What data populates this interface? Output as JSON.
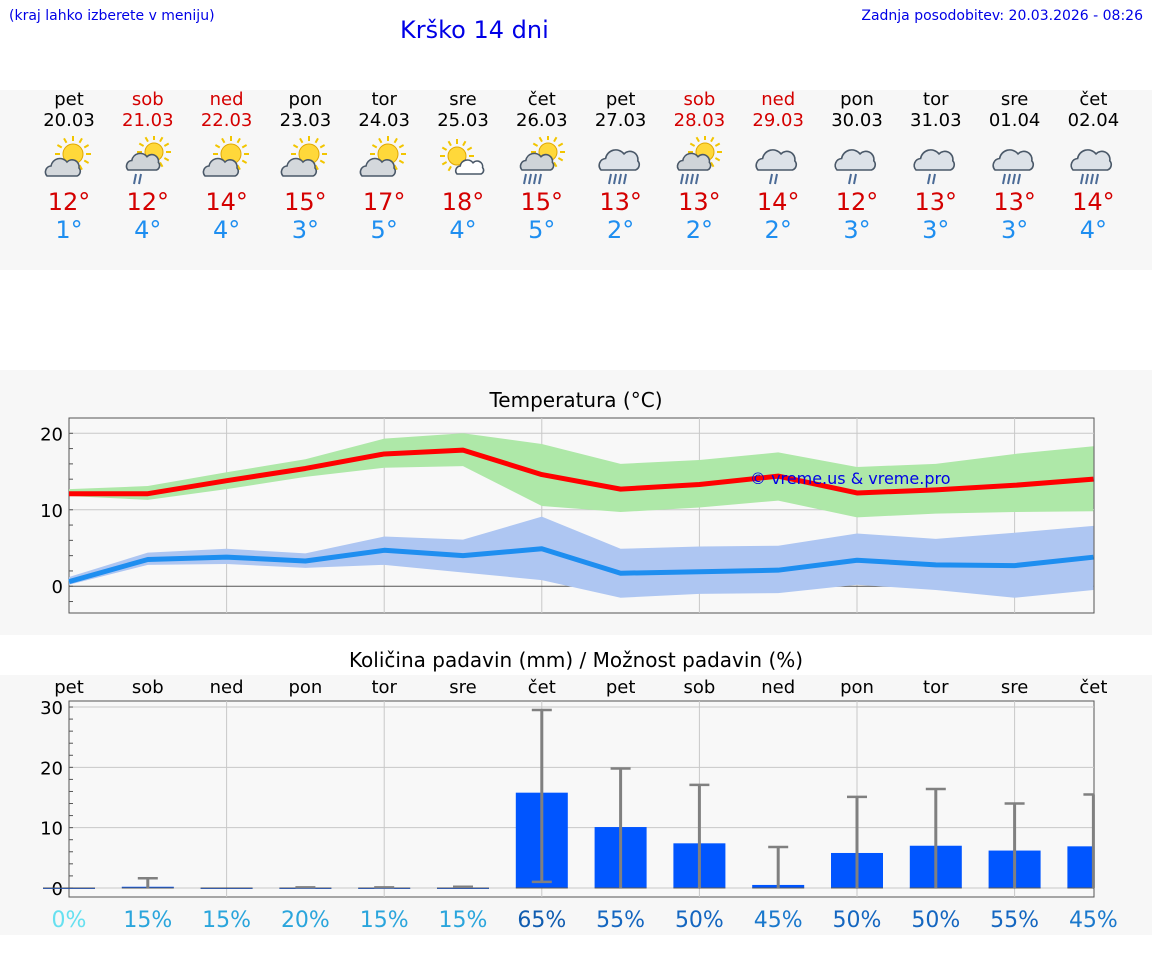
{
  "header": {
    "menu_hint": "(kraj lahko izberete v meniju)",
    "title": "Krško 14 dni",
    "updated": "Zadnja posodobitev: 20.03.2026 - 08:26"
  },
  "days": [
    {
      "name": "pet",
      "date": "20.03",
      "weekend": false,
      "icon": "partly-cloudy-sun-icon",
      "tmax": "12°",
      "tmin": "1°"
    },
    {
      "name": "sob",
      "date": "21.03",
      "weekend": true,
      "icon": "sun-cloud-light-rain-icon",
      "tmax": "12°",
      "tmin": "4°"
    },
    {
      "name": "ned",
      "date": "22.03",
      "weekend": true,
      "icon": "partly-cloudy-sun-icon",
      "tmax": "14°",
      "tmin": "4°"
    },
    {
      "name": "pon",
      "date": "23.03",
      "weekend": false,
      "icon": "partly-cloudy-sun-icon",
      "tmax": "15°",
      "tmin": "3°"
    },
    {
      "name": "tor",
      "date": "24.03",
      "weekend": false,
      "icon": "partly-cloudy-sun-icon",
      "tmax": "17°",
      "tmin": "5°"
    },
    {
      "name": "sre",
      "date": "25.03",
      "weekend": false,
      "icon": "mostly-sunny-icon",
      "tmax": "18°",
      "tmin": "4°"
    },
    {
      "name": "čet",
      "date": "26.03",
      "weekend": false,
      "icon": "sun-cloud-rain-icon",
      "tmax": "15°",
      "tmin": "5°"
    },
    {
      "name": "pet",
      "date": "27.03",
      "weekend": false,
      "icon": "cloud-rain-icon",
      "tmax": "13°",
      "tmin": "2°"
    },
    {
      "name": "sob",
      "date": "28.03",
      "weekend": true,
      "icon": "sun-cloud-rain-icon",
      "tmax": "13°",
      "tmin": "2°"
    },
    {
      "name": "ned",
      "date": "29.03",
      "weekend": true,
      "icon": "cloud-light-rain-icon",
      "tmax": "14°",
      "tmin": "2°"
    },
    {
      "name": "pon",
      "date": "30.03",
      "weekend": false,
      "icon": "cloud-light-rain-icon",
      "tmax": "12°",
      "tmin": "3°"
    },
    {
      "name": "tor",
      "date": "31.03",
      "weekend": false,
      "icon": "cloud-light-rain-icon",
      "tmax": "13°",
      "tmin": "3°"
    },
    {
      "name": "sre",
      "date": "01.04",
      "weekend": false,
      "icon": "cloud-rain-icon",
      "tmax": "13°",
      "tmin": "3°"
    },
    {
      "name": "čet",
      "date": "02.04",
      "weekend": false,
      "icon": "cloud-rain-icon",
      "tmax": "14°",
      "tmin": "4°"
    }
  ],
  "colors": {
    "max_line": "#ff0000",
    "max_band": "#aee8a8",
    "min_line": "#1e8ef0",
    "min_band": "#aec6f2",
    "bar": "#0055ff",
    "error": "#808080"
  },
  "chart_data": [
    {
      "type": "line",
      "title": "Temperatura (°C)",
      "watermark": "© vreme.us & vreme.pro",
      "ylim": [
        -3.5,
        22
      ],
      "yticks": [
        0,
        10,
        20
      ],
      "x": [
        0,
        1,
        2,
        3,
        4,
        5,
        6,
        7,
        8,
        9,
        10,
        11,
        12,
        13
      ],
      "series": [
        {
          "name": "max",
          "values": [
            12.1,
            12.1,
            13.8,
            15.4,
            17.3,
            17.8,
            14.6,
            12.7,
            13.3,
            14.4,
            12.2,
            12.6,
            13.2,
            14.0
          ],
          "band_low": [
            11.8,
            11.3,
            12.7,
            14.3,
            15.5,
            15.7,
            10.5,
            9.7,
            10.3,
            11.2,
            9.0,
            9.5,
            9.7,
            9.8
          ],
          "band_high": [
            12.7,
            13.1,
            14.9,
            16.6,
            19.3,
            20.0,
            18.6,
            16.0,
            16.5,
            17.5,
            15.6,
            16.0,
            17.3,
            18.3
          ]
        },
        {
          "name": "min",
          "values": [
            0.6,
            3.5,
            3.8,
            3.3,
            4.7,
            4.0,
            4.9,
            1.7,
            1.9,
            2.1,
            3.4,
            2.8,
            2.7,
            3.8
          ],
          "band_low": [
            0.2,
            2.8,
            2.9,
            2.4,
            2.8,
            1.8,
            0.8,
            -1.5,
            -1.0,
            -0.9,
            0.2,
            -0.5,
            -1.5,
            -0.5
          ],
          "band_high": [
            1.2,
            4.4,
            4.9,
            4.3,
            6.5,
            6.1,
            9.1,
            4.9,
            5.2,
            5.3,
            6.9,
            6.2,
            7.0,
            7.9
          ]
        }
      ]
    },
    {
      "type": "bar",
      "title": "Količina padavin (mm) / Možnost padavin (%)",
      "ylim": [
        -1.5,
        31
      ],
      "yticks": [
        0,
        10,
        20,
        30
      ],
      "categories": [
        "pet",
        "sob",
        "ned",
        "pon",
        "tor",
        "sre",
        "čet",
        "pet",
        "sob",
        "ned",
        "pon",
        "tor",
        "sre",
        "čet"
      ],
      "values": [
        0,
        0.2,
        0,
        0,
        0,
        0,
        15.8,
        10.1,
        7.4,
        0.5,
        5.8,
        7.0,
        6.2,
        6.9
      ],
      "error_low": [
        0,
        0,
        0,
        0,
        0,
        0,
        1.0,
        0,
        0,
        0,
        0,
        0,
        0,
        0
      ],
      "error_high": [
        0,
        1.6,
        0,
        0.1,
        0.1,
        0.2,
        29.5,
        19.8,
        17.1,
        6.8,
        15.1,
        16.4,
        14.0,
        15.5
      ],
      "probabilities": [
        "0%",
        "15%",
        "15%",
        "20%",
        "15%",
        "15%",
        "65%",
        "55%",
        "50%",
        "45%",
        "50%",
        "50%",
        "55%",
        "45%"
      ],
      "probability_colors": [
        "#66e0f0",
        "#2aa5dc",
        "#2aa5dc",
        "#2aa5dc",
        "#2aa5dc",
        "#2aa5dc",
        "#105cb0",
        "#1466c0",
        "#1466c0",
        "#1a78cc",
        "#1466c0",
        "#1466c0",
        "#1466c0",
        "#1a78cc"
      ]
    }
  ]
}
